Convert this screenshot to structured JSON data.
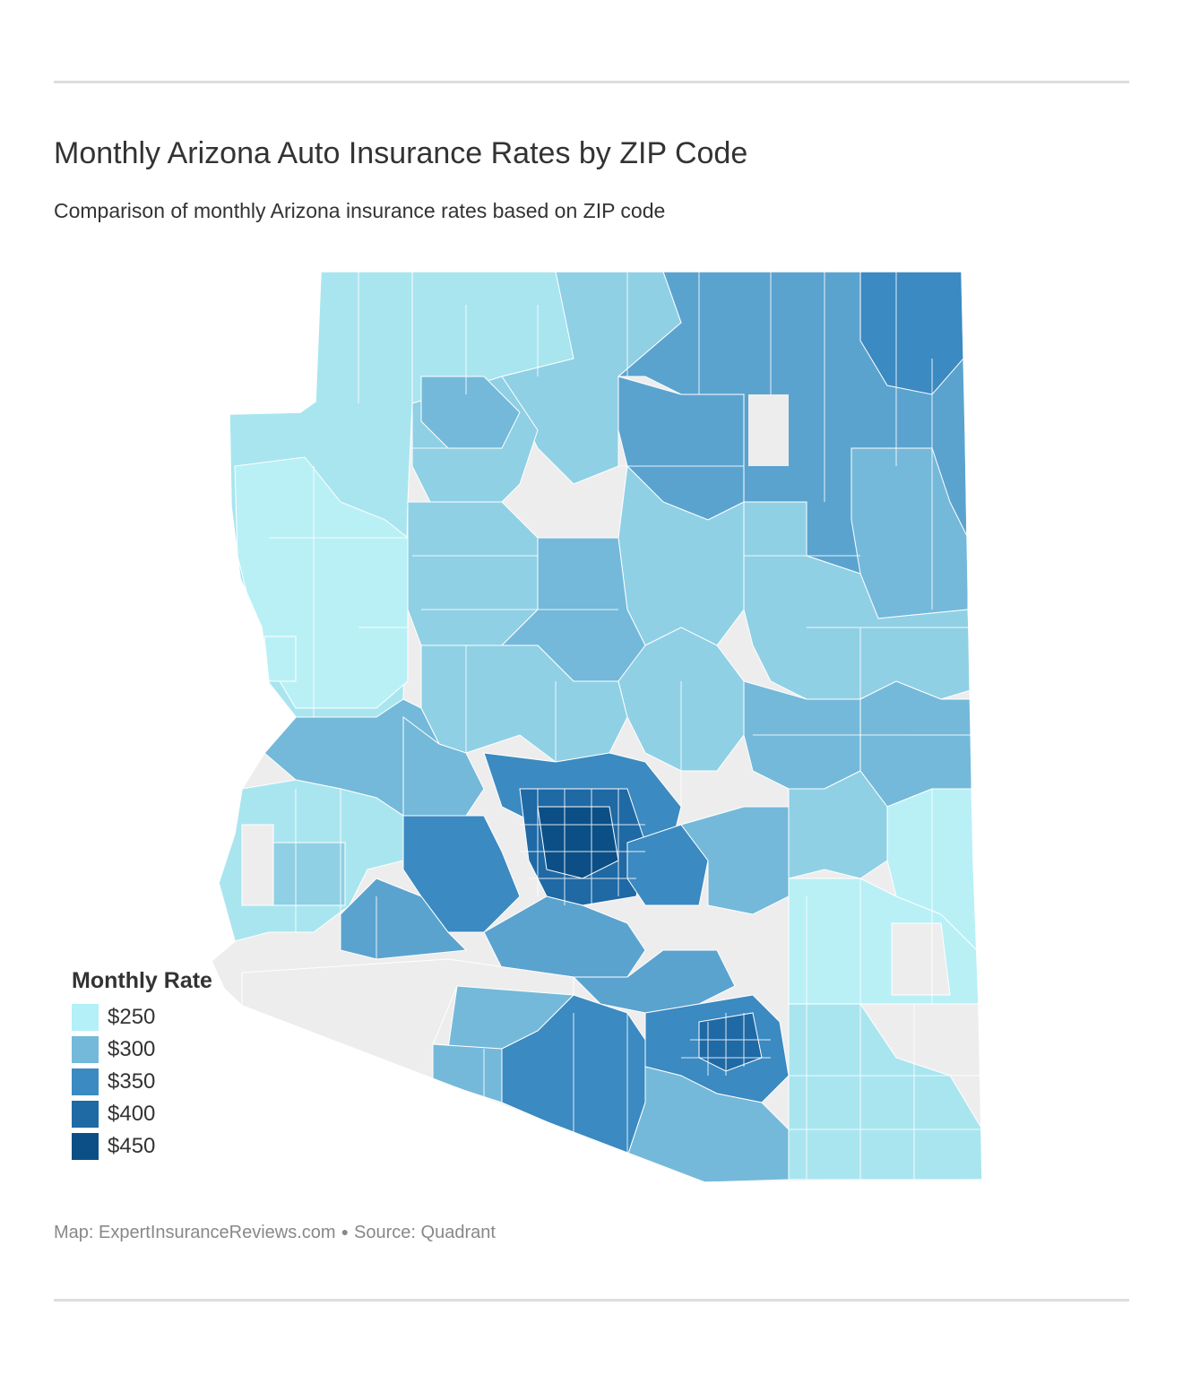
{
  "header": {
    "title": "Monthly Arizona Auto Insurance Rates by ZIP Code",
    "subtitle": "Comparison of monthly Arizona insurance rates based on ZIP code"
  },
  "map": {
    "region": "Arizona",
    "no_data_color": "#ededed",
    "region_colors": [
      "#b8f0f6",
      "#a9e5ef",
      "#8fd0e5",
      "#74b9d9",
      "#5ba3cf",
      "#3b8ac1",
      "#1f69a5",
      "#0b4f86"
    ]
  },
  "legend": {
    "title": "Monthly Rate",
    "items": [
      {
        "label": "$250",
        "color": "#b3f0f7"
      },
      {
        "label": "$300",
        "color": "#74b9d9"
      },
      {
        "label": "$350",
        "color": "#3b8ac1"
      },
      {
        "label": "$400",
        "color": "#1f69a5"
      },
      {
        "label": "$450",
        "color": "#0b4f86"
      }
    ]
  },
  "footer": {
    "map_credit": "Map: ExpertInsuranceReviews.com",
    "source": "Source: Quadrant"
  }
}
